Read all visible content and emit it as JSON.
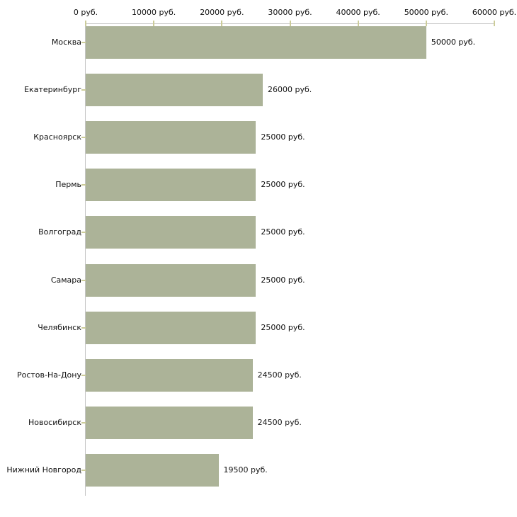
{
  "chart_data": {
    "type": "bar",
    "orientation": "horizontal",
    "title": "",
    "categories": [
      "Москва",
      "Екатеринбург",
      "Красноярск",
      "Пермь",
      "Волгоград",
      "Самара",
      "Челябинск",
      "Ростов-На-Дону",
      "Новосибирск",
      "Нижний Новгород"
    ],
    "values": [
      50000,
      26000,
      25000,
      25000,
      25000,
      25000,
      25000,
      24500,
      24500,
      19500
    ],
    "value_labels": [
      "50000 руб.",
      "26000 руб.",
      "25000 руб.",
      "25000 руб.",
      "25000 руб.",
      "25000 руб.",
      "25000 руб.",
      "24500 руб.",
      "24500 руб.",
      "19500 руб."
    ],
    "x_ticks": [
      0,
      10000,
      20000,
      30000,
      40000,
      50000,
      60000
    ],
    "x_tick_labels": [
      "0 руб.",
      "10000 руб.",
      "20000 руб.",
      "30000 руб.",
      "40000 руб.",
      "50000 руб.",
      "60000 руб."
    ],
    "xlim": [
      0,
      60000
    ],
    "unit": "руб.",
    "xlabel": "",
    "ylabel": "",
    "axis_position": "top",
    "grid": false,
    "legend": null,
    "colors": {
      "bar": "#acb398",
      "axis_line": "#c5c5c5",
      "tick": "#cccc99",
      "text": "#111111",
      "background": "#ffffff"
    }
  }
}
